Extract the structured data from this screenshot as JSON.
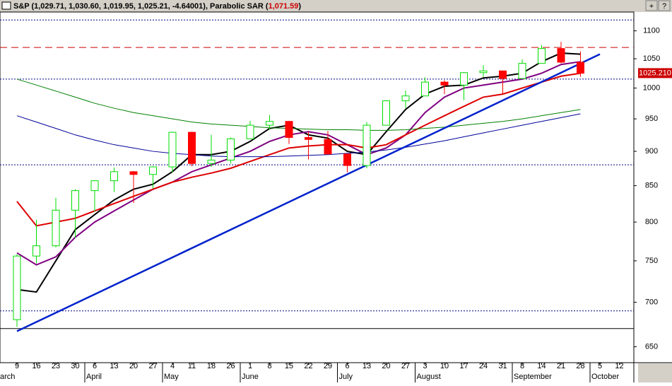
{
  "chart_data": {
    "type": "candlestick",
    "title": "S&P (1,029.71, 1,030.60, 1,019.95, 1,025.21, -4.64001), Parabolic SAR (",
    "sar_label": "1,071.59",
    "title_end": ")",
    "window_buttons": [
      "+",
      "?"
    ],
    "categories": [
      "9",
      "16",
      "23",
      "30",
      "6",
      "13",
      "20",
      "27",
      "4",
      "11",
      "18",
      "26",
      "1",
      "8",
      "15",
      "22",
      "29",
      "6",
      "13",
      "20",
      "27",
      "3",
      "10",
      "17",
      "24",
      "31",
      "8",
      "14",
      "21",
      "28",
      "5",
      "12"
    ],
    "months": [
      "arch",
      null,
      null,
      null,
      "April",
      null,
      null,
      null,
      "May",
      null,
      null,
      null,
      "June",
      null,
      null,
      null,
      null,
      "July",
      null,
      null,
      null,
      "August",
      null,
      null,
      null,
      null,
      "September",
      null,
      null,
      null,
      "October",
      null
    ],
    "open": [
      680,
      756,
      769,
      816,
      843,
      857,
      870,
      866,
      877,
      929,
      882,
      887,
      919,
      940,
      946,
      921,
      918,
      896,
      879,
      940,
      979,
      987,
      1010,
      1005,
      1026,
      1029,
      1016,
      1042,
      1068,
      1044,
      null,
      null
    ],
    "high": [
      758,
      803,
      833,
      845,
      857,
      876,
      871,
      878,
      930,
      930,
      925,
      921,
      947,
      956,
      947,
      930,
      931,
      896,
      945,
      980,
      996,
      1018,
      1013,
      1027,
      1039,
      1029,
      1049,
      1074,
      1080,
      1063,
      null,
      null
    ],
    "low": [
      672,
      747,
      767,
      779,
      814,
      841,
      826,
      846,
      869,
      878,
      877,
      882,
      919,
      933,
      911,
      888,
      896,
      869,
      875,
      940,
      967,
      987,
      990,
      980,
      1019,
      991,
      1016,
      1042,
      1042,
      1019,
      null,
      null
    ],
    "close": [
      756,
      769,
      816,
      843,
      857,
      870,
      866,
      877,
      929,
      882,
      887,
      919,
      940,
      946,
      921,
      918,
      896,
      879,
      940,
      979,
      987,
      1010,
      1005,
      1026,
      1029,
      1016,
      1042,
      1068,
      1044,
      1025,
      null,
      null
    ],
    "up_color": "#00dd00",
    "down_color": "#ff0000",
    "series": [
      {
        "color": "#000000",
        "width": 2,
        "values": [
          715,
          712,
          750,
          790,
          810,
          830,
          845,
          852,
          870,
          895,
          895,
          900,
          915,
          935,
          940,
          925,
          920,
          900,
          895,
          930,
          965,
          990,
          1003,
          1005,
          1017,
          1020,
          1025,
          1045,
          1060,
          1058,
          null,
          null
        ]
      },
      {
        "color": "#800080",
        "width": 2,
        "values": [
          760,
          745,
          755,
          780,
          800,
          815,
          830,
          845,
          855,
          870,
          880,
          890,
          900,
          915,
          925,
          930,
          925,
          910,
          895,
          905,
          925,
          960,
          985,
          1000,
          1005,
          1010,
          1015,
          1025,
          1040,
          1045,
          null,
          null
        ]
      },
      {
        "color": "#dd0000",
        "width": 2,
        "values": [
          828,
          795,
          800,
          805,
          815,
          825,
          835,
          845,
          855,
          862,
          868,
          875,
          885,
          895,
          905,
          908,
          910,
          910,
          905,
          910,
          925,
          940,
          955,
          970,
          985,
          990,
          1000,
          1010,
          1020,
          1025,
          null,
          null
        ]
      },
      {
        "color": "#008000",
        "width": 1,
        "values": [
          1015,
          1005,
          995,
          985,
          975,
          967,
          960,
          955,
          950,
          945,
          942,
          940,
          938,
          936,
          935,
          934,
          933,
          933,
          932,
          932,
          933,
          935,
          937,
          940,
          943,
          946,
          950,
          955,
          960,
          965,
          null,
          null
        ]
      },
      {
        "color": "#000099",
        "width": 1,
        "values": [
          955,
          945,
          935,
          925,
          917,
          910,
          905,
          900,
          897,
          895,
          893,
          892,
          892,
          892,
          893,
          894,
          895,
          897,
          899,
          902,
          906,
          911,
          916,
          922,
          928,
          934,
          940,
          946,
          952,
          958,
          null,
          null
        ]
      }
    ],
    "trendline": {
      "color": "#0022cc",
      "x": [
        0,
        30
      ],
      "values": [
        667,
        1058
      ]
    },
    "hlines": [
      {
        "value": 1120,
        "color": "#000080",
        "dash": "2,2"
      },
      {
        "value": 1070,
        "color": "#cc0000",
        "dash": "10,6"
      },
      {
        "value": 1015,
        "color": "#000080",
        "dash": "2,2"
      },
      {
        "value": 880,
        "color": "#000080",
        "dash": "2,2"
      },
      {
        "value": 690,
        "color": "#000080",
        "dash": "2,2"
      },
      {
        "value": 670,
        "color": "#000000",
        "dash": "none"
      }
    ],
    "last_price": {
      "value": 1025.21,
      "label": "1025.210"
    },
    "log_scale": true,
    "ylim": [
      633,
      1135
    ],
    "yticks": [
      650,
      700,
      750,
      800,
      850,
      900,
      950,
      1000,
      1050,
      1100
    ]
  }
}
